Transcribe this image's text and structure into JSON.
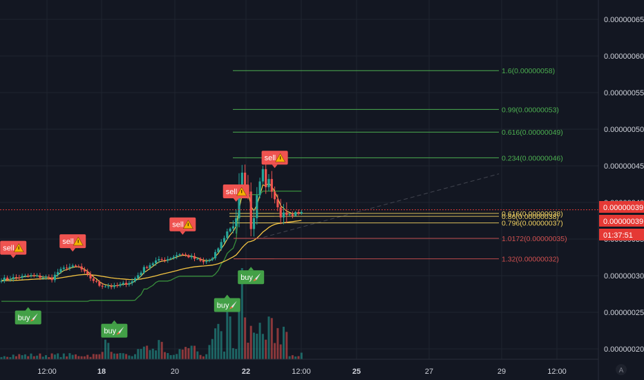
{
  "colors": {
    "background": "#131722",
    "grid": "#1f2430",
    "axis_text": "#d1d4dc",
    "bull": "#26a69a",
    "bear": "#ef5350",
    "fib_green": "#4caf50",
    "fib_yellow": "#f0d060",
    "fib_red": "#d05050",
    "ema_fast": "#ffd54f",
    "ema_slow": "#f5c542",
    "trail": "#388e3c",
    "sell_badge": "#ef5350",
    "buy_badge": "#43a047",
    "price_tag": "#e53935"
  },
  "icons": {
    "warning": "warning-triangle-icon",
    "rocket": "rocket-icon",
    "auto_scale": "A"
  },
  "chart_data": {
    "type": "candlestick",
    "y_axis": {
      "ticks": [
        "0.00000065",
        "0.00000060",
        "0.00000055",
        "0.00000050",
        "0.00000045",
        "0.00000040",
        "0.00000035",
        "0.00000030",
        "0.00000025",
        "0.00000020"
      ],
      "range": [
        1.83e-07,
        6.87e-07
      ]
    },
    "x_axis": {
      "labels": [
        "12:00",
        "18",
        "20",
        "22",
        "12:00",
        "25",
        "27",
        "29",
        "12:00"
      ],
      "bold": [
        false,
        true,
        false,
        true,
        false,
        true,
        false,
        false,
        false
      ]
    },
    "price_tags": [
      {
        "label": "0.00000039",
        "value": 3.9e-07
      },
      {
        "label": "0.00000039",
        "value": 3.88e-07
      },
      {
        "label": "01:37:51",
        "value": 3.88e-07
      }
    ],
    "fib_levels": [
      {
        "label": "1.6(0.00000058)",
        "value": 5.8e-07,
        "color": "green"
      },
      {
        "label": "0.99(0.00000053)",
        "value": 5.27e-07,
        "color": "green"
      },
      {
        "label": "0.616(0.00000049)",
        "value": 4.96e-07,
        "color": "green"
      },
      {
        "label": "0.234(0.00000046)",
        "value": 4.61e-07,
        "color": "green"
      },
      {
        "label": "0.616(0.00000038)",
        "value": 3.85e-07,
        "color": "yellow"
      },
      {
        "label": "0.86(0.00000038)",
        "value": 3.81e-07,
        "color": "yellow"
      },
      {
        "label": "0.796(0.00000037)",
        "value": 3.72e-07,
        "color": "yellow"
      },
      {
        "label": "1.0172(0.00000035)",
        "value": 3.51e-07,
        "color": "red"
      },
      {
        "label": "1.32(0.00000032)",
        "value": 3.23e-07,
        "color": "red"
      }
    ],
    "signals": [
      {
        "type": "sell",
        "label": "sell",
        "candle": 4,
        "price": 3.23e-07
      },
      {
        "type": "buy",
        "label": "buy",
        "candle": 9,
        "price": 2.58e-07
      },
      {
        "type": "sell",
        "label": "sell",
        "candle": 24,
        "price": 3.32e-07
      },
      {
        "type": "buy",
        "label": "buy",
        "candle": 38,
        "price": 2.4e-07
      },
      {
        "type": "sell",
        "label": "sell",
        "candle": 61,
        "price": 3.55e-07
      },
      {
        "type": "buy",
        "label": "buy",
        "candle": 76,
        "price": 2.75e-07
      },
      {
        "type": "sell",
        "label": "sell",
        "candle": 79,
        "price": 4e-07
      },
      {
        "type": "buy",
        "label": "buy",
        "candle": 84,
        "price": 3.13e-07
      },
      {
        "type": "sell",
        "label": "sell",
        "candle": 92,
        "price": 4.46e-07
      }
    ]
  }
}
